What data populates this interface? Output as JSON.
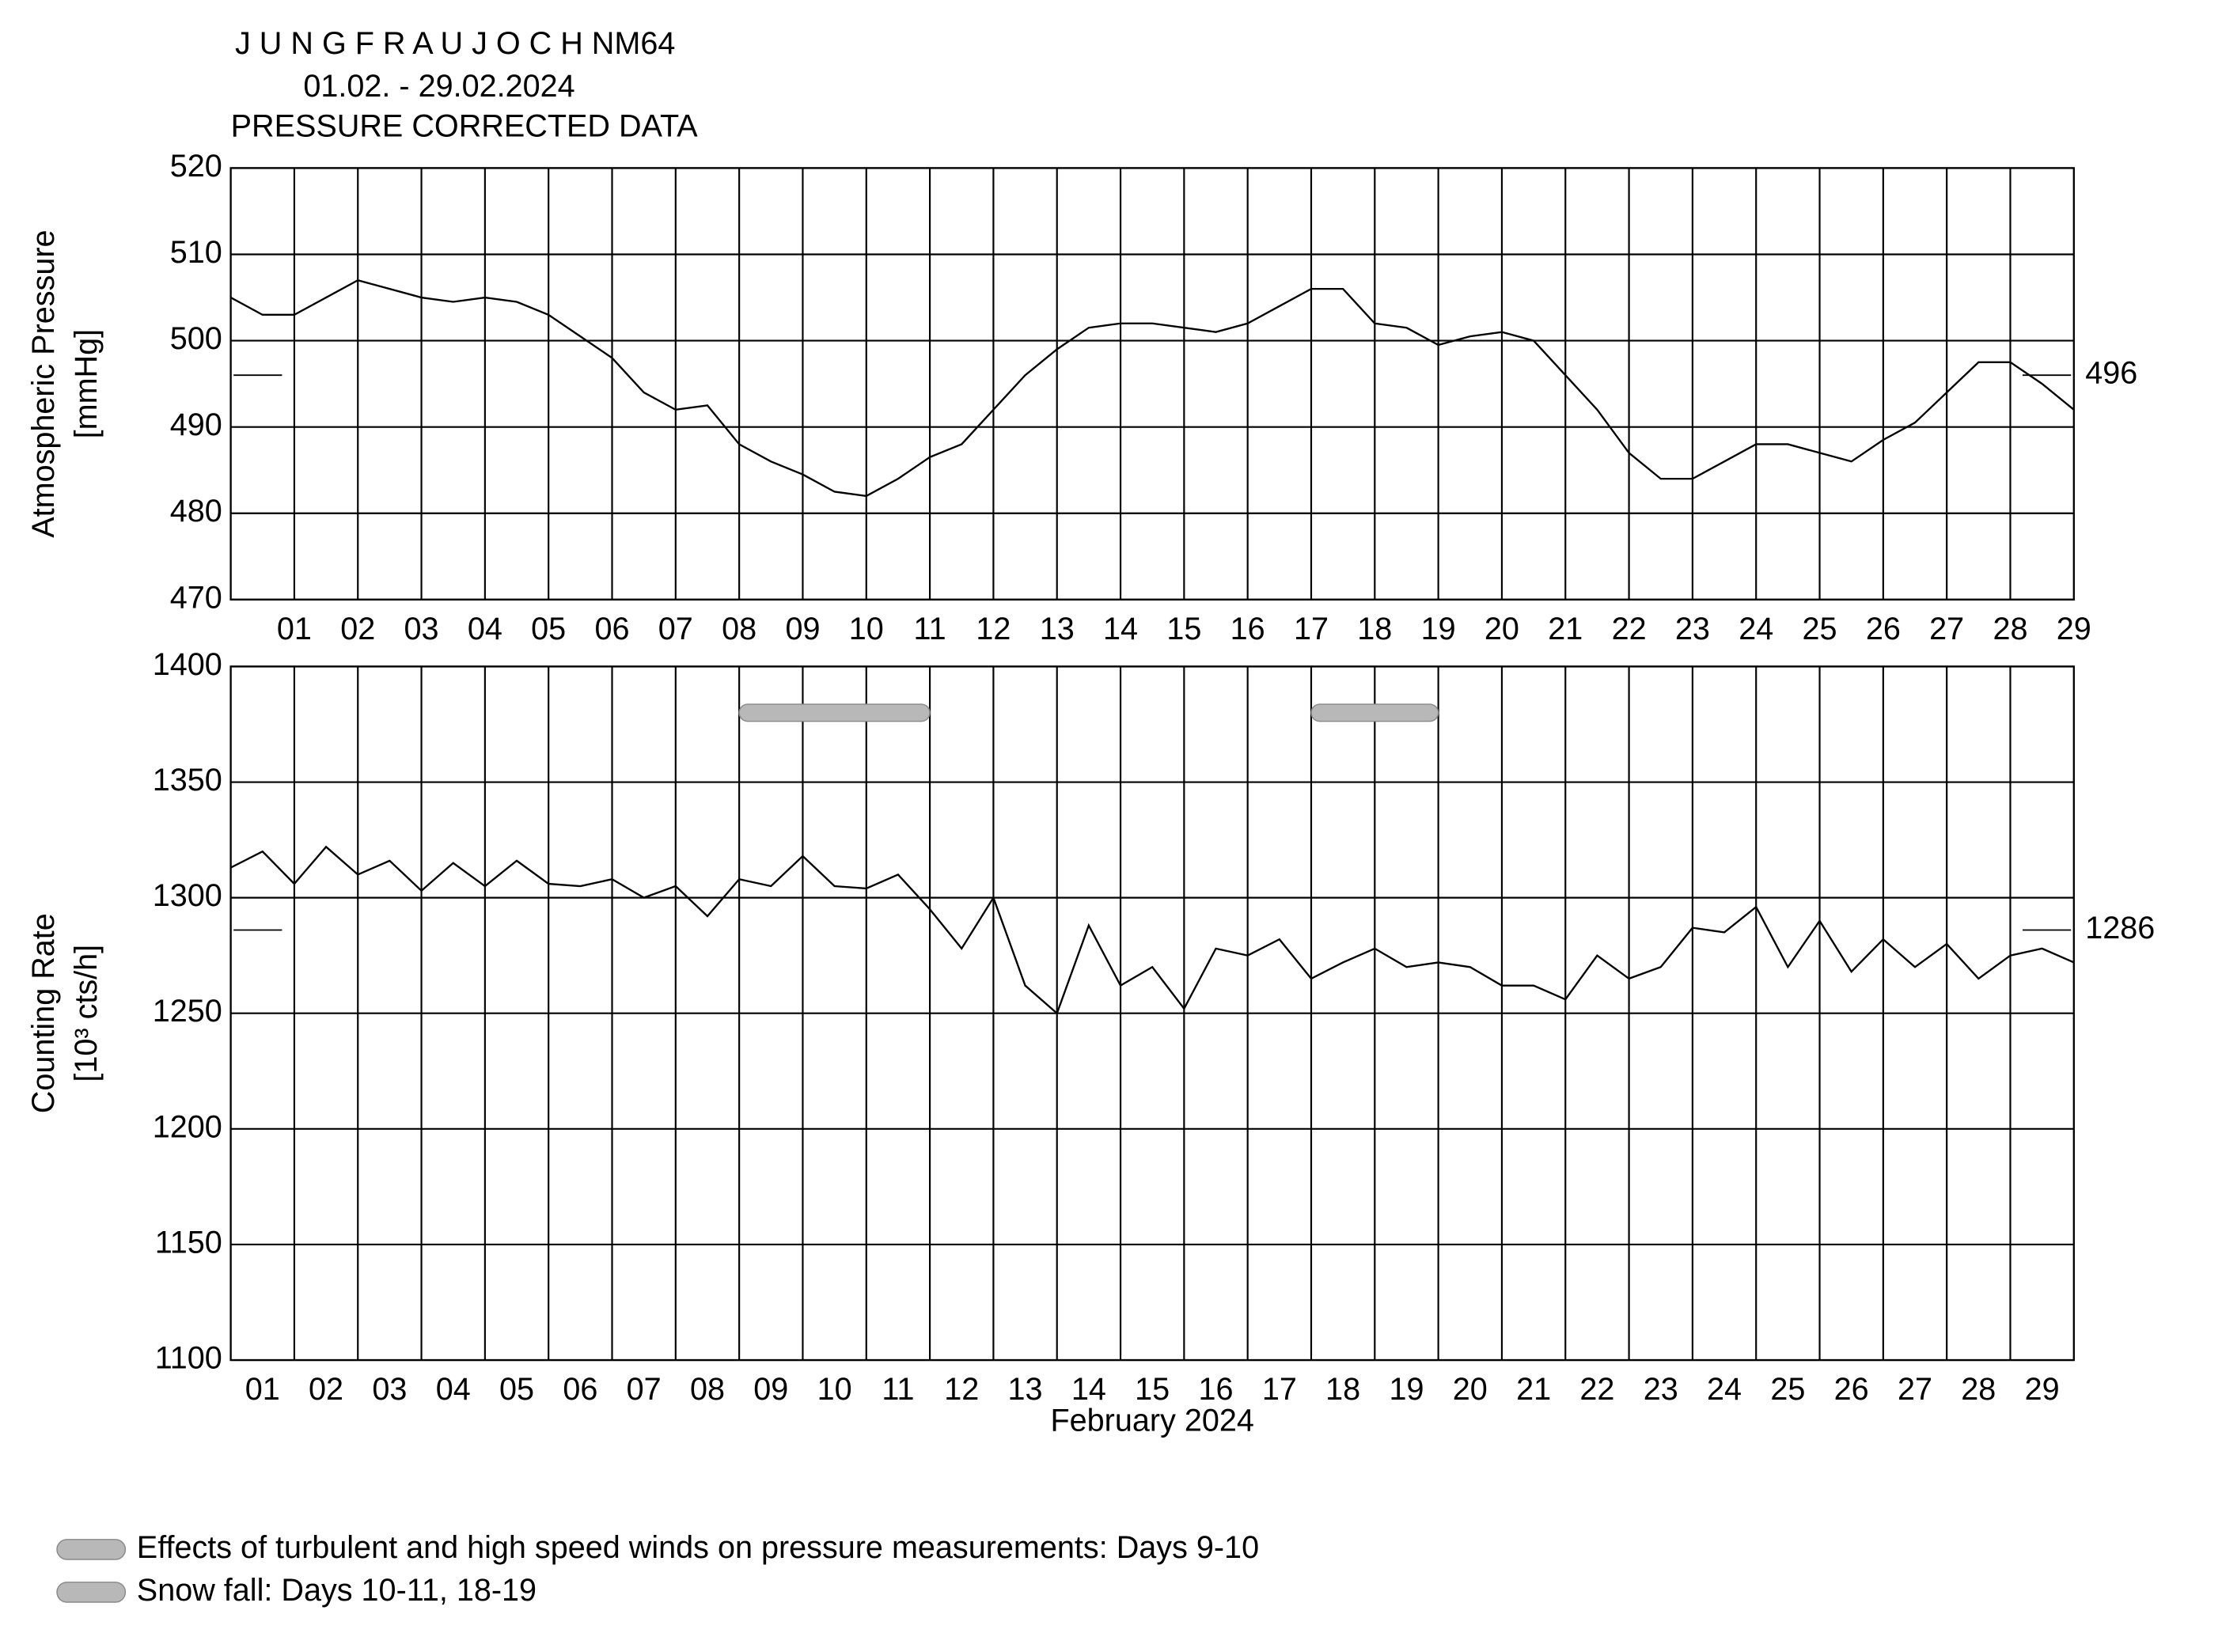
{
  "title": "J U N G F R A U J O C H  NM64",
  "subtitle": "01.02. - 29.02.2024",
  "subtitle2": "PRESSURE CORRECTED DATA",
  "chart_data": [
    {
      "type": "line",
      "ylabel": [
        "Atmospheric Pressure",
        "[mmHg]"
      ],
      "xlim": [
        0,
        29
      ],
      "ylim": [
        470,
        520
      ],
      "yticks": [
        470,
        480,
        490,
        500,
        510,
        520
      ],
      "xticks": [
        {
          "value": 1,
          "label": "01"
        },
        {
          "value": 2,
          "label": "02"
        },
        {
          "value": 3,
          "label": "03"
        },
        {
          "value": 4,
          "label": "04"
        },
        {
          "value": 5,
          "label": "05"
        },
        {
          "value": 6,
          "label": "06"
        },
        {
          "value": 7,
          "label": "07"
        },
        {
          "value": 8,
          "label": "08"
        },
        {
          "value": 9,
          "label": "09"
        },
        {
          "value": 10,
          "label": "10"
        },
        {
          "value": 11,
          "label": "11"
        },
        {
          "value": 12,
          "label": "12"
        },
        {
          "value": 13,
          "label": "13"
        },
        {
          "value": 14,
          "label": "14"
        },
        {
          "value": 15,
          "label": "15"
        },
        {
          "value": 16,
          "label": "16"
        },
        {
          "value": 17,
          "label": "17"
        },
        {
          "value": 18,
          "label": "18"
        },
        {
          "value": 19,
          "label": "19"
        },
        {
          "value": 20,
          "label": "20"
        },
        {
          "value": 21,
          "label": "21"
        },
        {
          "value": 22,
          "label": "22"
        },
        {
          "value": 23,
          "label": "23"
        },
        {
          "value": 24,
          "label": "24"
        },
        {
          "value": 25,
          "label": "25"
        },
        {
          "value": 26,
          "label": "26"
        },
        {
          "value": 27,
          "label": "27"
        },
        {
          "value": 28,
          "label": "28"
        },
        {
          "value": 29,
          "label": "29"
        }
      ],
      "xgrid": [
        1,
        2,
        3,
        4,
        5,
        6,
        7,
        8,
        9,
        10,
        11,
        12,
        13,
        14,
        15,
        16,
        17,
        18,
        19,
        20,
        21,
        22,
        23,
        24,
        25,
        26,
        27,
        28
      ],
      "reference": {
        "value": 496,
        "label": "496"
      },
      "x": [
        0,
        0.5,
        1,
        1.5,
        2,
        2.5,
        3,
        3.5,
        4,
        4.5,
        5,
        5.5,
        6,
        6.5,
        7,
        7.5,
        8,
        8.5,
        9,
        9.5,
        10,
        10.5,
        11,
        11.5,
        12,
        12.5,
        13,
        13.5,
        14,
        14.5,
        15,
        15.5,
        16,
        16.5,
        17,
        17.5,
        18,
        18.5,
        19,
        19.5,
        20,
        20.5,
        21,
        21.5,
        22,
        22.5,
        23,
        23.5,
        24,
        24.5,
        25,
        25.5,
        26,
        26.5,
        27,
        27.5,
        28,
        28.5,
        29
      ],
      "series": [
        {
          "color": "#000000",
          "values": [
            505,
            503,
            503,
            505,
            507,
            506,
            505,
            504.5,
            505,
            504.5,
            503,
            500.5,
            498,
            494,
            492,
            492.5,
            488,
            486,
            484.5,
            482.5,
            482,
            484,
            486.5,
            488,
            492,
            496,
            499,
            501.5,
            502,
            502,
            501.5,
            501,
            502,
            504,
            506,
            506,
            502,
            501.5,
            499.5,
            500.5,
            501,
            500,
            496,
            492,
            487,
            484,
            484,
            486,
            488,
            488,
            487,
            486,
            488.5,
            490.5,
            494,
            497.5,
            497.5,
            495,
            492
          ]
        }
      ]
    },
    {
      "type": "line",
      "ylabel": [
        "Counting Rate",
        "[10³ cts/h]"
      ],
      "xlabel": "February 2024",
      "xlim": [
        0,
        29
      ],
      "ylim": [
        1100,
        1400
      ],
      "yticks": [
        1100,
        1150,
        1200,
        1250,
        1300,
        1350,
        1400
      ],
      "xticks": [
        {
          "value": 0.5,
          "label": "01"
        },
        {
          "value": 1.5,
          "label": "02"
        },
        {
          "value": 2.5,
          "label": "03"
        },
        {
          "value": 3.5,
          "label": "04"
        },
        {
          "value": 4.5,
          "label": "05"
        },
        {
          "value": 5.5,
          "label": "06"
        },
        {
          "value": 6.5,
          "label": "07"
        },
        {
          "value": 7.5,
          "label": "08"
        },
        {
          "value": 8.5,
          "label": "09"
        },
        {
          "value": 9.5,
          "label": "10"
        },
        {
          "value": 10.5,
          "label": "11"
        },
        {
          "value": 11.5,
          "label": "12"
        },
        {
          "value": 12.5,
          "label": "13"
        },
        {
          "value": 13.5,
          "label": "14"
        },
        {
          "value": 14.5,
          "label": "15"
        },
        {
          "value": 15.5,
          "label": "16"
        },
        {
          "value": 16.5,
          "label": "17"
        },
        {
          "value": 17.5,
          "label": "18"
        },
        {
          "value": 18.5,
          "label": "19"
        },
        {
          "value": 19.5,
          "label": "20"
        },
        {
          "value": 20.5,
          "label": "21"
        },
        {
          "value": 21.5,
          "label": "22"
        },
        {
          "value": 22.5,
          "label": "23"
        },
        {
          "value": 23.5,
          "label": "24"
        },
        {
          "value": 24.5,
          "label": "25"
        },
        {
          "value": 25.5,
          "label": "26"
        },
        {
          "value": 26.5,
          "label": "27"
        },
        {
          "value": 27.5,
          "label": "28"
        },
        {
          "value": 28.5,
          "label": "29"
        }
      ],
      "xgrid": [
        1,
        2,
        3,
        4,
        5,
        6,
        7,
        8,
        9,
        10,
        11,
        12,
        13,
        14,
        15,
        16,
        17,
        18,
        19,
        20,
        21,
        22,
        23,
        24,
        25,
        26,
        27,
        28
      ],
      "reference": {
        "value": 1286,
        "label": "1286"
      },
      "bands": [
        {
          "x": [
            8,
            11
          ],
          "y": 1380
        },
        {
          "x": [
            17,
            19
          ],
          "y": 1380
        }
      ],
      "band_color": "#b8b8b8",
      "legend": [
        "Effects of turbulent and high speed winds on pressure measurements: Days 9-10",
        "Snow fall: Days 10-11, 18-19"
      ],
      "x": [
        0,
        0.5,
        1,
        1.5,
        2,
        2.5,
        3,
        3.5,
        4,
        4.5,
        5,
        5.5,
        6,
        6.5,
        7,
        7.5,
        8,
        8.5,
        9,
        9.5,
        10,
        10.5,
        11,
        11.5,
        12,
        12.5,
        13,
        13.5,
        14,
        14.5,
        15,
        15.5,
        16,
        16.5,
        17,
        17.5,
        18,
        18.5,
        19,
        19.5,
        20,
        20.5,
        21,
        21.5,
        22,
        22.5,
        23,
        23.5,
        24,
        24.5,
        25,
        25.5,
        26,
        26.5,
        27,
        27.5,
        28,
        28.5,
        29
      ],
      "series": [
        {
          "color": "#000000",
          "values": [
            1313,
            1320,
            1306,
            1322,
            1310,
            1316,
            1303,
            1315,
            1305,
            1316,
            1306,
            1305,
            1308,
            1300,
            1305,
            1292,
            1308,
            1305,
            1318,
            1305,
            1304,
            1310,
            1295,
            1278,
            1300,
            1262,
            1250,
            1288,
            1262,
            1270,
            1252,
            1278,
            1275,
            1282,
            1265,
            1272,
            1278,
            1270,
            1272,
            1270,
            1262,
            1262,
            1256,
            1275,
            1265,
            1270,
            1287,
            1285,
            1296,
            1270,
            1290,
            1268,
            1282,
            1270,
            1280,
            1265,
            1275,
            1278,
            1272
          ]
        }
      ]
    }
  ]
}
